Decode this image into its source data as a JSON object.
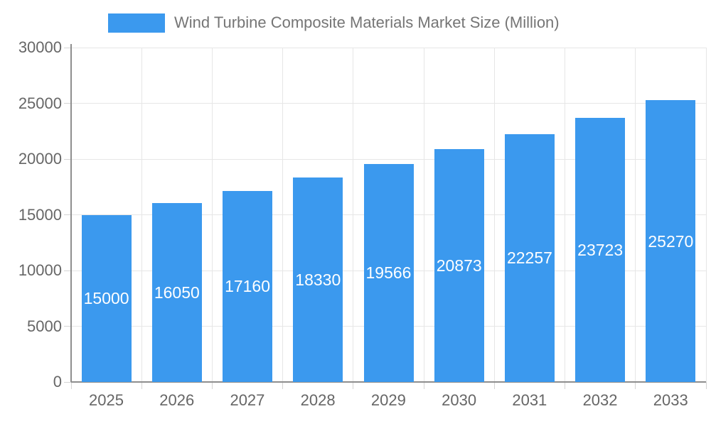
{
  "legend": {
    "label": "Wind Turbine Composite Materials Market Size (Million)"
  },
  "colors": {
    "bar": "#3B99EE",
    "grid": "#E6E6E6",
    "axis": "#8E8E8E",
    "tick": "#D4D4D4",
    "axis_label": "#666666",
    "legend_text": "#757575",
    "bar_label": "#FFFFFF",
    "background": "#FFFFFF"
  },
  "chart_data": {
    "type": "bar",
    "title": "",
    "categories": [
      "2025",
      "2026",
      "2027",
      "2028",
      "2029",
      "2030",
      "2031",
      "2032",
      "2033"
    ],
    "values": [
      15000,
      16050,
      17160,
      18330,
      19566,
      20873,
      22257,
      23723,
      25270
    ],
    "series_name": "Wind Turbine Composite Materials Market Size (Million)",
    "xlabel": "",
    "ylabel": "",
    "ylim": [
      0,
      30000
    ],
    "ytick_interval": 5000,
    "ytick_labels": [
      "0",
      "5000",
      "10000",
      "15000",
      "20000",
      "25000",
      "30000"
    ],
    "grid": true,
    "legend_position": "top",
    "bar_value_labels_inside": true
  }
}
